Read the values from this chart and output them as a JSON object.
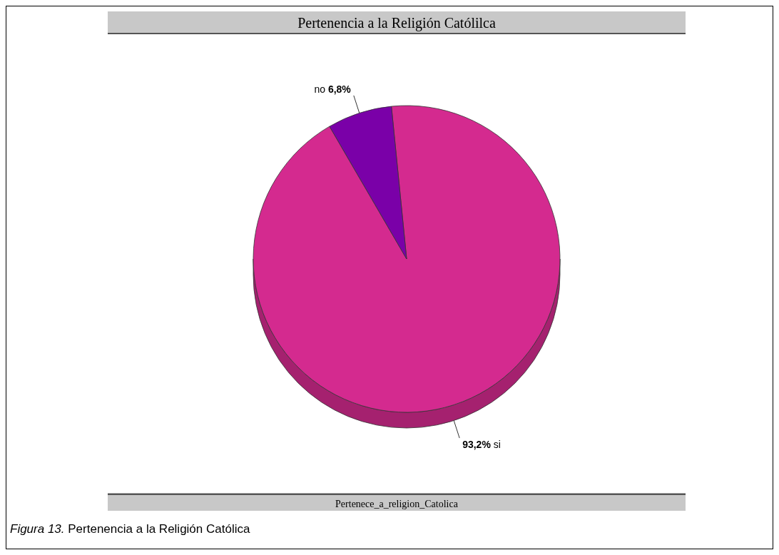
{
  "chart_data": {
    "type": "pie",
    "title": "Pertenencia a la Religión Católilca",
    "xlabel": "Pertenece_a_religion_Catolica",
    "annotations": [
      "Figura 13. Pertenencia a la Religión Católica"
    ],
    "categories": [
      "si",
      "no"
    ],
    "values": [
      93.2,
      6.8
    ],
    "colors": [
      "#d42a8f",
      "#7a00a8"
    ],
    "value_labels": [
      "93,2%",
      "6,8%"
    ],
    "legend": false
  }
}
